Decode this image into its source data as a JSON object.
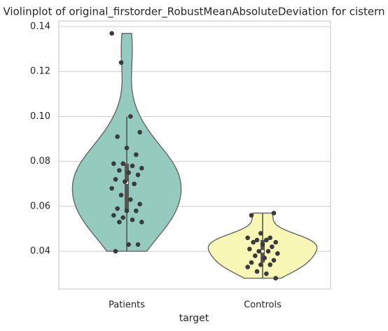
{
  "chart_data": {
    "type": "violin",
    "title": "Violinplot of original_firstorder_RobustMeanAbsoluteDeviation for cistern",
    "x_label": "target",
    "categories": [
      "Patients",
      "Controls"
    ],
    "colors": [
      "#95cbbf",
      "#f8f7b6"
    ],
    "values": [
      [
        0.137,
        0.124,
        0.1,
        0.093,
        0.091,
        0.086,
        0.083,
        0.079,
        0.079,
        0.078,
        0.077,
        0.076,
        0.075,
        0.074,
        0.072,
        0.071,
        0.07,
        0.068,
        0.065,
        0.063,
        0.061,
        0.059,
        0.058,
        0.058,
        0.056,
        0.055,
        0.054,
        0.053,
        0.053,
        0.043,
        0.043,
        0.04
      ],
      [
        0.057,
        0.056,
        0.048,
        0.046,
        0.046,
        0.045,
        0.045,
        0.044,
        0.044,
        0.043,
        0.042,
        0.041,
        0.04,
        0.04,
        0.039,
        0.038,
        0.037,
        0.036,
        0.035,
        0.034,
        0.034,
        0.033,
        0.031,
        0.03,
        0.028
      ]
    ],
    "ylim": [
      0.0232,
      0.1425
    ],
    "yticks": [
      0.04,
      0.06,
      0.08,
      {
        "value": 0.1,
        "label": "0.10"
      },
      0.12,
      0.14
    ],
    "grid": true
  }
}
